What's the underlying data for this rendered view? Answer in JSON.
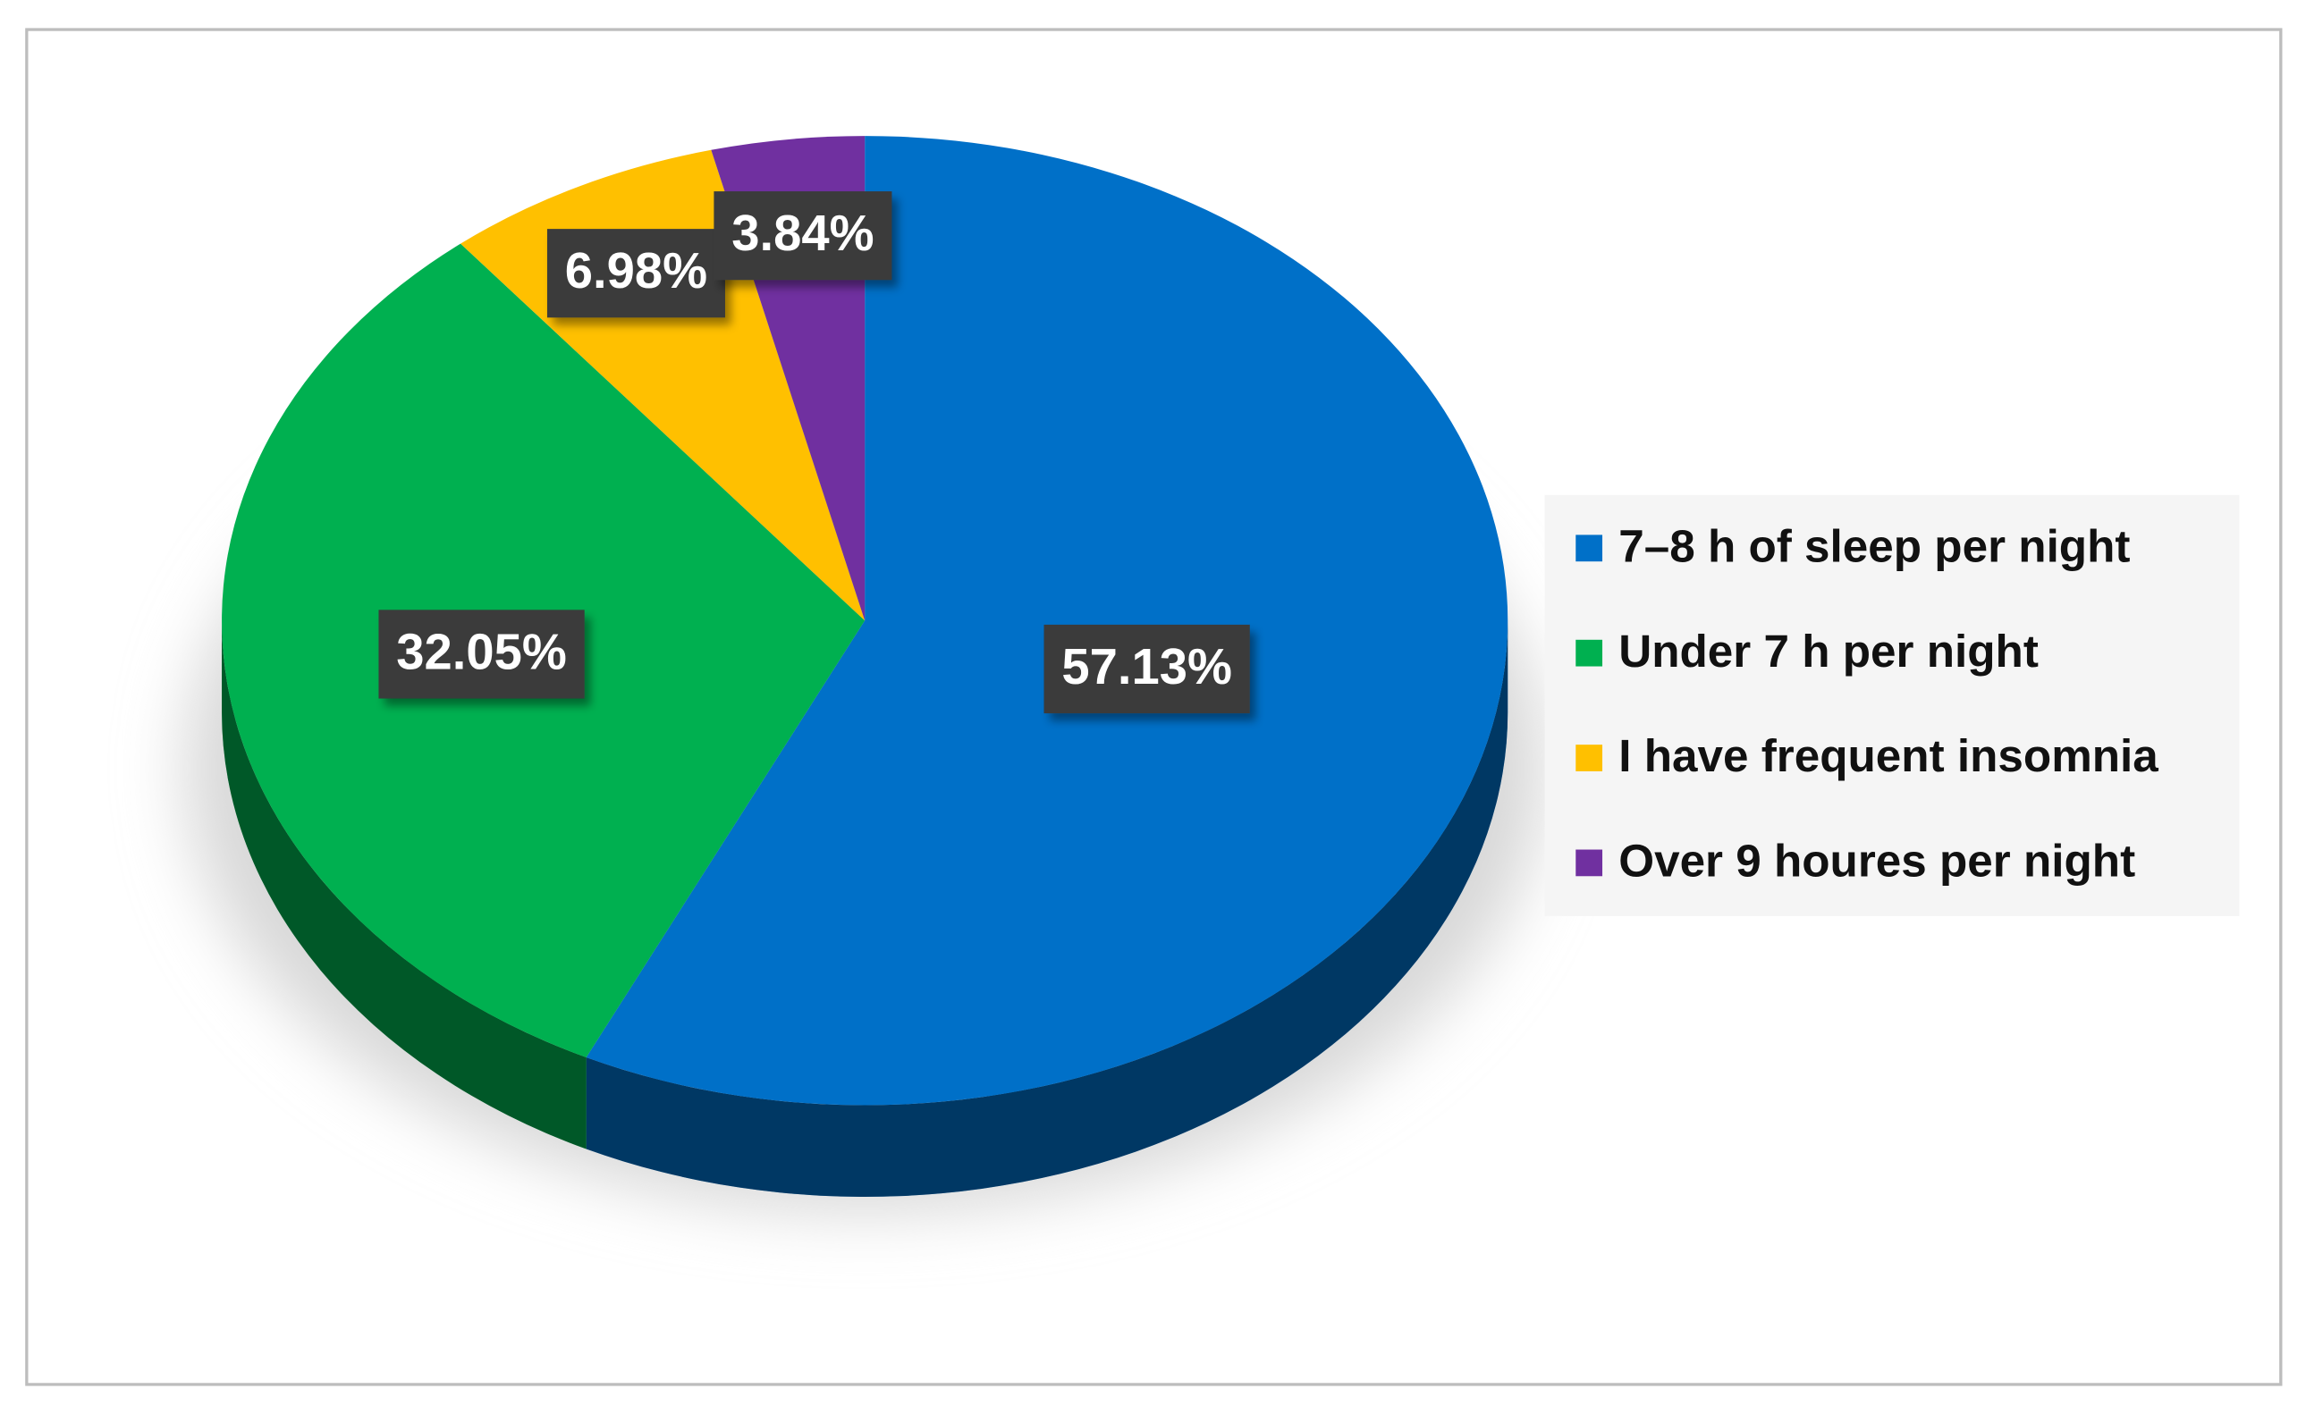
{
  "chart_data": {
    "type": "pie",
    "series": [
      {
        "name": "7–8 h of sleep per night",
        "color": "#0070c8",
        "values": [
          57.13
        ],
        "value_labels": [
          "57.13%"
        ]
      },
      {
        "name": "Under 7 h per night",
        "color": "#00b050",
        "values": [
          32.05
        ],
        "value_labels": [
          "32.05%"
        ]
      },
      {
        "name": "I have frequent insomnia",
        "color": "#ffc000",
        "values": [
          6.98
        ],
        "value_labels": [
          "6.98%"
        ]
      },
      {
        "name": "Over 9 houres per night",
        "color": "#7030a0",
        "values": [
          3.84
        ],
        "value_labels": [
          "3.84%"
        ]
      }
    ],
    "legend": "right"
  }
}
